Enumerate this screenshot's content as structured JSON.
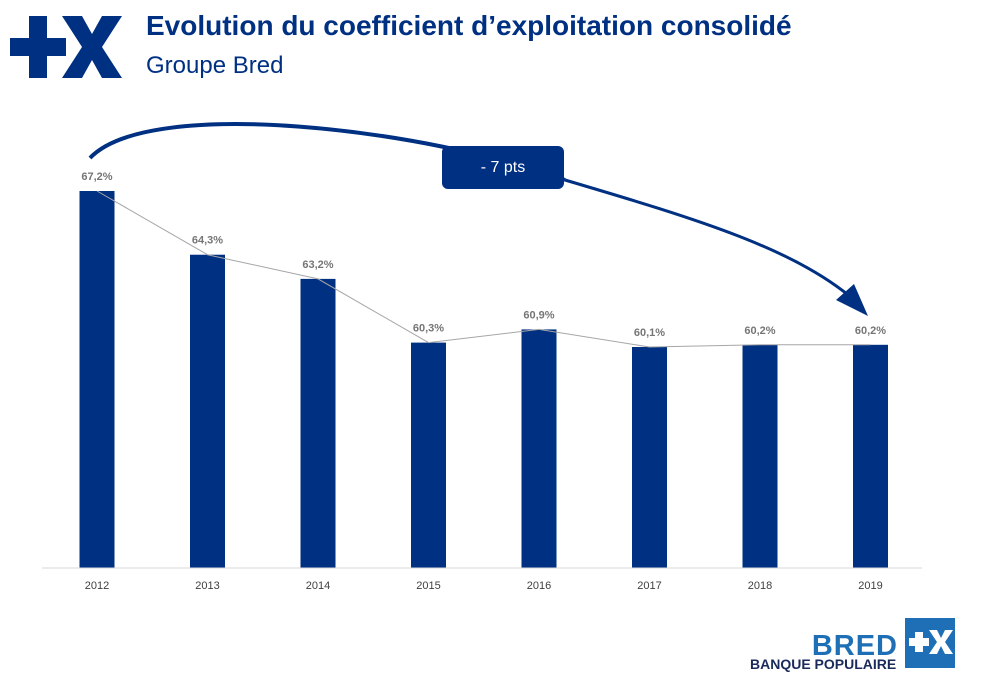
{
  "header": {
    "logo_icon": "plus-x-logo-icon",
    "title": "Evolution du coefficient d’exploitation consolidé",
    "subtitle": "Groupe Bred"
  },
  "callout": {
    "label": "- 7 pts"
  },
  "footer": {
    "brand_name": "BRED",
    "brand_sub": "BANQUE POPULAIRE",
    "brand_icon": "plus-x-logo-icon"
  },
  "colors": {
    "bar": "#003082",
    "line": "#a6a6a6",
    "label": "#767676",
    "brand": "#1e6fb5"
  },
  "chart_data": {
    "type": "bar",
    "categories": [
      "2012",
      "2013",
      "2014",
      "2015",
      "2016",
      "2017",
      "2018",
      "2019"
    ],
    "values": [
      67.2,
      64.3,
      63.2,
      60.3,
      60.9,
      60.1,
      60.2,
      60.2
    ],
    "data_labels": [
      "67,2%",
      "64,3%",
      "63,2%",
      "60,3%",
      "60,9%",
      "60,1%",
      "60,2%",
      "60,2%"
    ],
    "overlay_line": true,
    "title": "Evolution du coefficient d’exploitation consolidé",
    "subtitle": "Groupe Bred",
    "xlabel": "",
    "ylabel": "",
    "grid": false,
    "legend": "none",
    "annotation": "- 7 pts"
  }
}
